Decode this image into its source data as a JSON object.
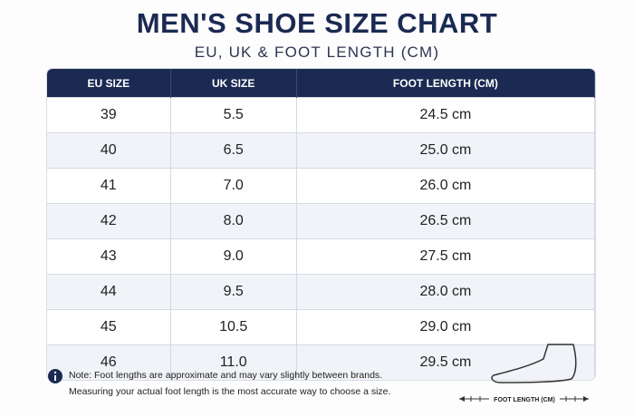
{
  "header": {
    "title": "MEN'S SHOE SIZE CHART",
    "subtitle": "EU, UK & FOOT LENGTH (CM)"
  },
  "table": {
    "columns": [
      "EU SIZE",
      "UK SIZE",
      "FOOT LENGTH (CM)"
    ],
    "rows": [
      [
        "39",
        "5.5",
        "24.5 cm"
      ],
      [
        "40",
        "6.5",
        "25.0 cm"
      ],
      [
        "41",
        "7.0",
        "26.0 cm"
      ],
      [
        "42",
        "8.0",
        "26.5 cm"
      ],
      [
        "43",
        "9.0",
        "27.5 cm"
      ],
      [
        "44",
        "9.5",
        "28.0 cm"
      ],
      [
        "45",
        "10.5",
        "29.0 cm"
      ],
      [
        "46",
        "11.0",
        "29.5 cm"
      ]
    ]
  },
  "note": {
    "lines": [
      "Note: Foot lengths are approximate and may vary slightly between brands.",
      "Measuring your actual foot length is the most accurate way to choose a size."
    ]
  },
  "illustration": {
    "label": "FOOT LENGTH (CM)"
  }
}
